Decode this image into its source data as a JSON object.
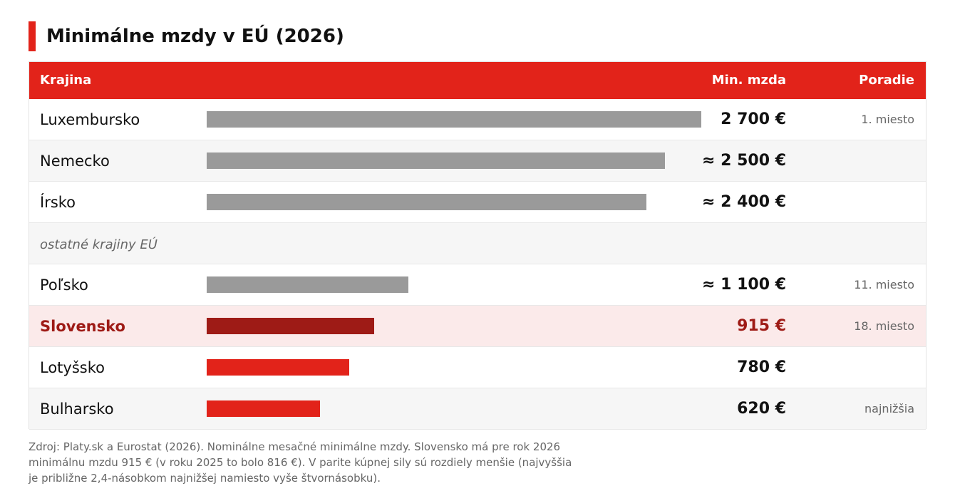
{
  "title": "Minimálne mzdy v EÚ (2026)",
  "colors": {
    "accent": "#e2231a",
    "bar_default": "#9a9a9a",
    "bar_highlight": "#9e1b16",
    "bar_low": "#e2231a"
  },
  "table": {
    "headers": {
      "country": "Krajina",
      "wage": "Min. mzda",
      "rank": "Poradie"
    }
  },
  "chart_data": {
    "type": "bar",
    "categories": [
      "Luxembursko",
      "Nemecko",
      "Írsko",
      "ostatné krajiny EÚ",
      "Poľsko",
      "Slovensko",
      "Lotyšsko",
      "Bulharsko"
    ],
    "values": [
      2700,
      2500,
      2400,
      null,
      1100,
      915,
      780,
      620
    ],
    "value_labels": [
      "2 700 €",
      "≈ 2 500 €",
      "≈ 2 400 €",
      "",
      "≈ 1 100 €",
      "915 €",
      "780 €",
      "620 €"
    ],
    "ranks": [
      "1. miesto",
      "",
      "",
      "",
      "11. miesto",
      "18. miesto",
      "",
      "najnižšia"
    ],
    "highlight": "Slovensko",
    "ylim": [
      0,
      2700
    ],
    "rows": [
      {
        "country": "Luxembursko",
        "value": 2700,
        "label": "2 700 €",
        "rank": "1. miesto",
        "color": "#9a9a9a"
      },
      {
        "country": "Nemecko",
        "value": 2500,
        "label": "≈ 2 500 €",
        "rank": "",
        "color": "#9a9a9a"
      },
      {
        "country": "Írsko",
        "value": 2400,
        "label": "≈ 2 400 €",
        "rank": "",
        "color": "#9a9a9a"
      },
      {
        "country": "ostatné krajiny EÚ",
        "value": null,
        "label": "",
        "rank": "",
        "separator": true
      },
      {
        "country": "Poľsko",
        "value": 1100,
        "label": "≈ 1 100 €",
        "rank": "11. miesto",
        "color": "#9a9a9a"
      },
      {
        "country": "Slovensko",
        "value": 915,
        "label": "915 €",
        "rank": "18. miesto",
        "color": "#9e1b16",
        "highlight": true
      },
      {
        "country": "Lotyšsko",
        "value": 780,
        "label": "780 €",
        "rank": "",
        "color": "#e2231a"
      },
      {
        "country": "Bulharsko",
        "value": 620,
        "label": "620 €",
        "rank": "najnižšia",
        "color": "#e2231a"
      }
    ]
  },
  "footnote": "Zdroj: Platy.sk a Eurostat (2026). Nominálne mesačné minimálne mzdy. Slovensko má pre rok 2026 minimálnu mzdu 915 € (v roku 2025 to bolo 816 €). V parite kúpnej sily sú rozdiely menšie (najvyššia je približne 2,4-násobkom najnižšej namiesto vyše štvornásobku)."
}
